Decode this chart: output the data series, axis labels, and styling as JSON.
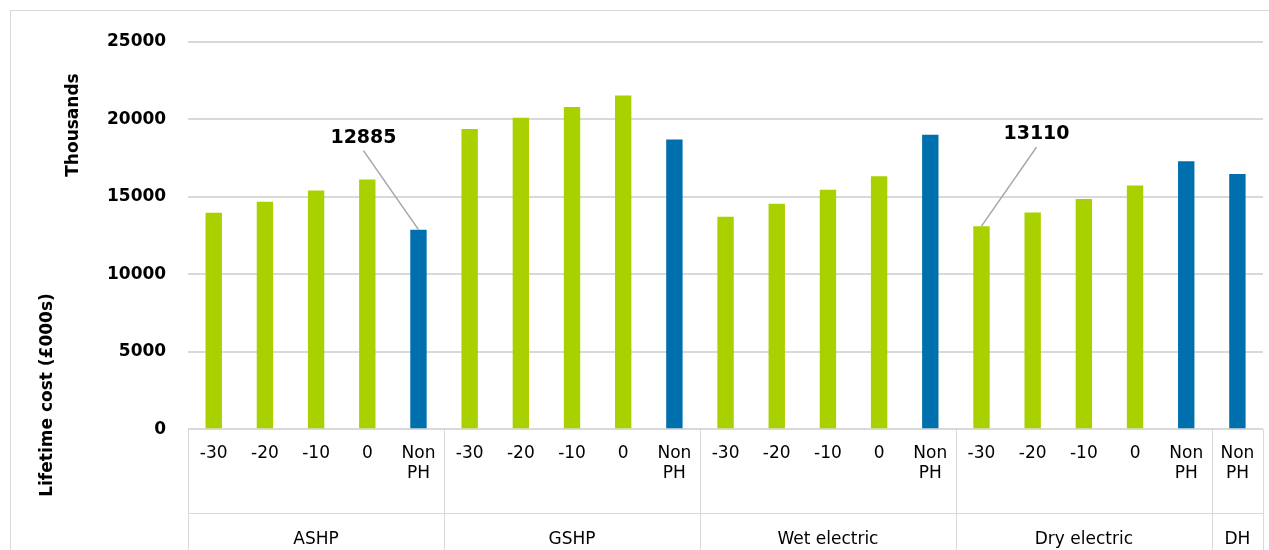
{
  "chart_data": {
    "type": "bar",
    "ylabel": "Lifetime cost (£000s)",
    "categories": [
      "-30",
      "-20",
      "-10",
      "0",
      "Non PH",
      "-30",
      "-20",
      "-10",
      "0",
      "Non PH",
      "-30",
      "-20",
      "-10",
      "0",
      "Non PH",
      "-30",
      "-20",
      "-10",
      "0",
      "Non PH",
      "Non PH"
    ],
    "values": [
      13970,
      14690,
      15420,
      16120,
      12885,
      19390,
      20110,
      20810,
      21540,
      18710,
      13710,
      14560,
      15460,
      16340,
      19010,
      13110,
      13990,
      14860,
      15740,
      17300,
      16480
    ],
    "colors": [
      "#a9d100",
      "#a9d100",
      "#a9d100",
      "#a9d100",
      "#006fad",
      "#a9d100",
      "#a9d100",
      "#a9d100",
      "#a9d100",
      "#006fad",
      "#a9d100",
      "#a9d100",
      "#a9d100",
      "#a9d100",
      "#006fad",
      "#a9d100",
      "#a9d100",
      "#a9d100",
      "#a9d100",
      "#006fad",
      "#006fad"
    ],
    "value_labels": [
      null,
      null,
      null,
      null,
      "12885",
      null,
      null,
      null,
      null,
      null,
      null,
      null,
      null,
      null,
      null,
      "13110",
      null,
      null,
      null,
      null,
      null
    ],
    "annotations": [
      "Thousands",
      "ASHP",
      "GSHP",
      "Wet electric",
      "Dry electric",
      "DH"
    ],
    "ylim": [
      0,
      25000
    ],
    "yticks": [
      0,
      5000,
      10000,
      15000,
      20000,
      25000
    ],
    "grid": "y",
    "legend": false
  }
}
